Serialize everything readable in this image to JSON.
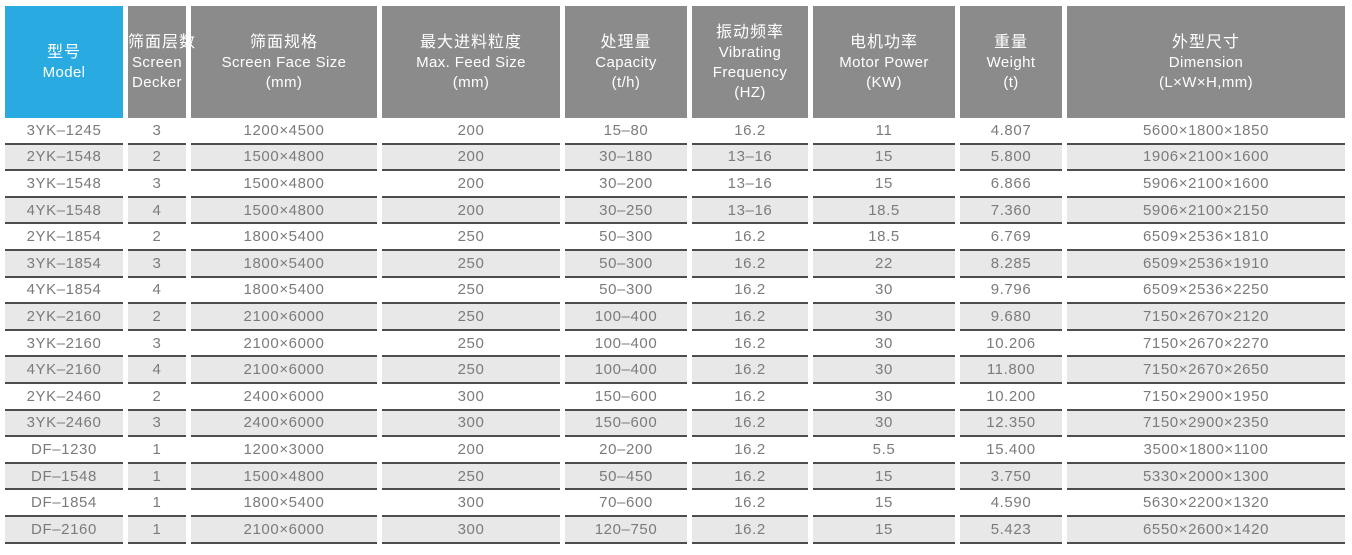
{
  "colors": {
    "header_accent": "#29abe2",
    "header_gray": "#8b8b8b",
    "row_alt_gray": "#e8e8e8",
    "row_separator": "#4d4d4d",
    "data_text": "#7b7b7b",
    "header_text": "#ffffff"
  },
  "table": {
    "header": [
      {
        "id": "model",
        "lines": [
          "型号",
          "Model"
        ]
      },
      {
        "id": "screen-decker",
        "lines": [
          "筛面层数",
          "Screen",
          "Decker"
        ]
      },
      {
        "id": "screen-face-size",
        "lines": [
          "筛面规格",
          "Screen Face Size",
          "(mm)"
        ]
      },
      {
        "id": "max-feed-size",
        "lines": [
          "最大进料粒度",
          "Max. Feed Size",
          "(mm)"
        ]
      },
      {
        "id": "capacity",
        "lines": [
          "处理量",
          "Capacity",
          "(t/h)"
        ]
      },
      {
        "id": "vibrating-frequency",
        "lines": [
          "振动频率",
          "Vibrating",
          "Frequency",
          "(HZ)"
        ]
      },
      {
        "id": "motor-power",
        "lines": [
          "电机功率",
          "Motor Power",
          "(KW)"
        ]
      },
      {
        "id": "weight",
        "lines": [
          "重量",
          "Weight",
          "(t)"
        ]
      },
      {
        "id": "dimension",
        "lines": [
          "外型尺寸",
          "Dimension",
          "(L×W×H,mm)"
        ]
      }
    ],
    "rows": [
      [
        "3YK–1245",
        "3",
        "1200×4500",
        "200",
        "15–80",
        "16.2",
        "11",
        "4.807",
        "5600×1800×1850"
      ],
      [
        "2YK–1548",
        "2",
        "1500×4800",
        "200",
        "30–180",
        "13–16",
        "15",
        "5.800",
        "1906×2100×1600"
      ],
      [
        "3YK–1548",
        "3",
        "1500×4800",
        "200",
        "30–200",
        "13–16",
        "15",
        "6.866",
        "5906×2100×1600"
      ],
      [
        "4YK–1548",
        "4",
        "1500×4800",
        "200",
        "30–250",
        "13–16",
        "18.5",
        "7.360",
        "5906×2100×2150"
      ],
      [
        "2YK–1854",
        "2",
        "1800×5400",
        "250",
        "50–300",
        "16.2",
        "18.5",
        "6.769",
        "6509×2536×1810"
      ],
      [
        "3YK–1854",
        "3",
        "1800×5400",
        "250",
        "50–300",
        "16.2",
        "22",
        "8.285",
        "6509×2536×1910"
      ],
      [
        "4YK–1854",
        "4",
        "1800×5400",
        "250",
        "50–300",
        "16.2",
        "30",
        "9.796",
        "6509×2536×2250"
      ],
      [
        "2YK–2160",
        "2",
        "2100×6000",
        "250",
        "100–400",
        "16.2",
        "30",
        "9.680",
        "7150×2670×2120"
      ],
      [
        "3YK–2160",
        "3",
        "2100×6000",
        "250",
        "100–400",
        "16.2",
        "30",
        "10.206",
        "7150×2670×2270"
      ],
      [
        "4YK–2160",
        "4",
        "2100×6000",
        "250",
        "100–400",
        "16.2",
        "30",
        "11.800",
        "7150×2670×2650"
      ],
      [
        "2YK–2460",
        "2",
        "2400×6000",
        "300",
        "150–600",
        "16.2",
        "30",
        "10.200",
        "7150×2900×1950"
      ],
      [
        "3YK–2460",
        "3",
        "2400×6000",
        "300",
        "150–600",
        "16.2",
        "30",
        "12.350",
        "7150×2900×2350"
      ],
      [
        "DF–1230",
        "1",
        "1200×3000",
        "200",
        "20–200",
        "16.2",
        "5.5",
        "15.400",
        "3500×1800×1100"
      ],
      [
        "DF–1548",
        "1",
        "1500×4800",
        "250",
        "50–450",
        "16.2",
        "15",
        "3.750",
        "5330×2000×1300"
      ],
      [
        "DF–1854",
        "1",
        "1800×5400",
        "300",
        "70–600",
        "16.2",
        "15",
        "4.590",
        "5630×2200×1320"
      ],
      [
        "DF–2160",
        "1",
        "2100×6000",
        "300",
        "120–750",
        "16.2",
        "15",
        "5.423",
        "6550×2600×1420"
      ]
    ]
  }
}
